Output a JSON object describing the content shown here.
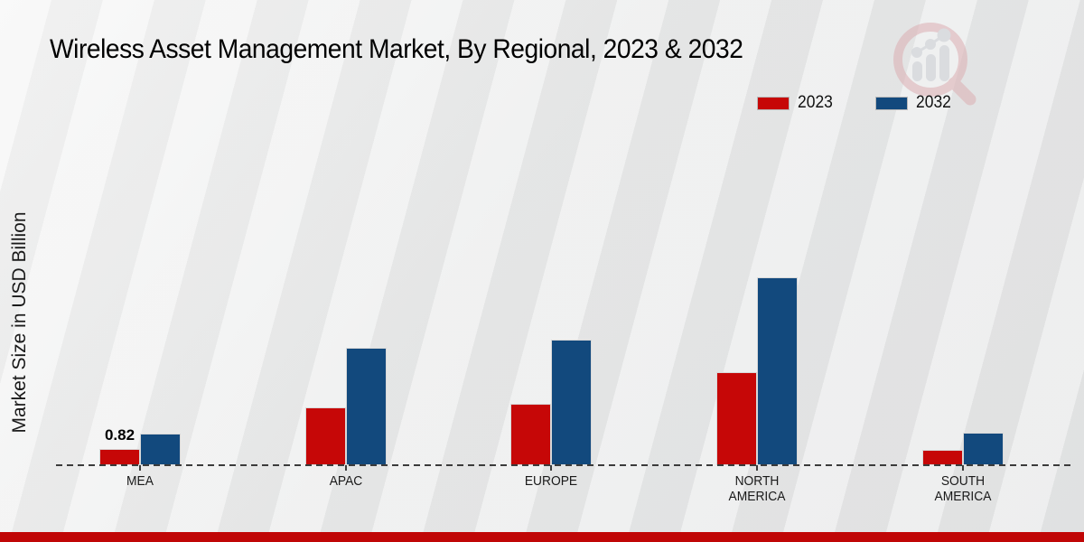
{
  "chart_data": {
    "type": "bar",
    "title": "Wireless Asset Management Market, By Regional, 2023 & 2032",
    "xlabel": "",
    "ylabel": "Market Size in USD Billion",
    "categories": [
      "MEA",
      "APAC",
      "EUROPE",
      "NORTH AMERICA",
      "SOUTH AMERICA"
    ],
    "series": [
      {
        "name": "2023",
        "color": "#c60707",
        "values": [
          0.82,
          2.95,
          3.15,
          4.75,
          0.78
        ]
      },
      {
        "name": "2032",
        "color": "#12497d",
        "values": [
          1.62,
          6.0,
          6.42,
          9.65,
          1.67
        ]
      }
    ],
    "ylim": [
      0,
      10.5
    ],
    "grid": false,
    "y_axis_ticks_visible": false,
    "baseline_style": "dashed",
    "legend_position": "top-right",
    "annotations": [
      {
        "series": "2023",
        "category": "MEA",
        "text": "0.82"
      }
    ]
  },
  "icons": {
    "watermark": "magnifier-bar-chart-icon"
  },
  "colors": {
    "bar_2023": "#c60707",
    "bar_2032": "#12497d",
    "footer_bar": "#c00606",
    "background": "#e9eaea",
    "baseline": "#3b3b3b"
  },
  "footer": {}
}
